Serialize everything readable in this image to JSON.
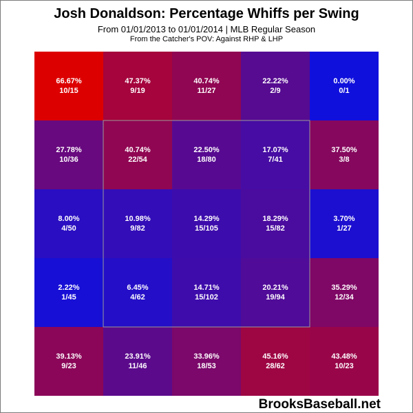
{
  "chart": {
    "title": "Josh Donaldson: Percentage Whiffs per Swing",
    "subtitle": "From 01/01/2013 to 01/01/2014 | MLB Regular Season",
    "note": "From the Catcher's POV:  Against RHP & LHP",
    "watermark": "BrooksBaseball.net"
  },
  "chart_data": {
    "type": "heatmap",
    "title": "Josh Donaldson: Percentage Whiffs per Swing",
    "rows": 5,
    "cols": 5,
    "strike_zone": {
      "rows": [
        1,
        3
      ],
      "cols": [
        1,
        3
      ]
    },
    "color_scale": {
      "low": "#1010dd",
      "high": "#dd0000"
    },
    "cells": [
      [
        {
          "pct": "66.67%",
          "count": "10/15",
          "value": 66.67
        },
        {
          "pct": "47.37%",
          "count": "9/19",
          "value": 47.37
        },
        {
          "pct": "40.74%",
          "count": "11/27",
          "value": 40.74
        },
        {
          "pct": "22.22%",
          "count": "2/9",
          "value": 22.22
        },
        {
          "pct": "0.00%",
          "count": "0/1",
          "value": 0.0
        }
      ],
      [
        {
          "pct": "27.78%",
          "count": "10/36",
          "value": 27.78
        },
        {
          "pct": "40.74%",
          "count": "22/54",
          "value": 40.74
        },
        {
          "pct": "22.50%",
          "count": "18/80",
          "value": 22.5
        },
        {
          "pct": "17.07%",
          "count": "7/41",
          "value": 17.07
        },
        {
          "pct": "37.50%",
          "count": "3/8",
          "value": 37.5
        }
      ],
      [
        {
          "pct": "8.00%",
          "count": "4/50",
          "value": 8.0
        },
        {
          "pct": "10.98%",
          "count": "9/82",
          "value": 10.98
        },
        {
          "pct": "14.29%",
          "count": "15/105",
          "value": 14.29
        },
        {
          "pct": "18.29%",
          "count": "15/82",
          "value": 18.29
        },
        {
          "pct": "3.70%",
          "count": "1/27",
          "value": 3.7
        }
      ],
      [
        {
          "pct": "2.22%",
          "count": "1/45",
          "value": 2.22
        },
        {
          "pct": "6.45%",
          "count": "4/62",
          "value": 6.45
        },
        {
          "pct": "14.71%",
          "count": "15/102",
          "value": 14.71
        },
        {
          "pct": "20.21%",
          "count": "19/94",
          "value": 20.21
        },
        {
          "pct": "35.29%",
          "count": "12/34",
          "value": 35.29
        }
      ],
      [
        {
          "pct": "39.13%",
          "count": "9/23",
          "value": 39.13
        },
        {
          "pct": "23.91%",
          "count": "11/46",
          "value": 23.91
        },
        {
          "pct": "33.96%",
          "count": "18/53",
          "value": 33.96
        },
        {
          "pct": "45.16%",
          "count": "28/62",
          "value": 45.16
        },
        {
          "pct": "43.48%",
          "count": "10/23",
          "value": 43.48
        }
      ]
    ]
  }
}
